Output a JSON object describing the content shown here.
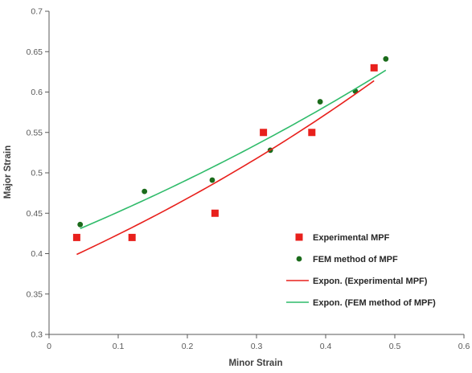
{
  "chart_data": {
    "type": "scatter",
    "title": "",
    "xlabel": "Minor Strain",
    "ylabel": "Major Strain",
    "xlim": [
      0,
      0.6
    ],
    "ylim": [
      0.3,
      0.7
    ],
    "x_ticks": [
      "0",
      "0.1",
      "0.2",
      "0.3",
      "0.4",
      "0.5",
      "0.6"
    ],
    "y_ticks": [
      "0.3",
      "0.35",
      "0.4",
      "0.45",
      "0.5",
      "0.55",
      "0.6",
      "0.65",
      "0.7"
    ],
    "grid": false,
    "legend_position": "bottom-right",
    "series": [
      {
        "name": "Experimental MPF",
        "kind": "scatter",
        "marker": "square",
        "color": "#e8201c",
        "points": [
          [
            0.04,
            0.42
          ],
          [
            0.12,
            0.42
          ],
          [
            0.24,
            0.45
          ],
          [
            0.31,
            0.55
          ],
          [
            0.38,
            0.55
          ],
          [
            0.47,
            0.63
          ]
        ]
      },
      {
        "name": "FEM method of MPF",
        "kind": "scatter",
        "marker": "circle",
        "color": "#1b6b1b",
        "points": [
          [
            0.045,
            0.436
          ],
          [
            0.138,
            0.477
          ],
          [
            0.236,
            0.491
          ],
          [
            0.32,
            0.528
          ],
          [
            0.392,
            0.588
          ],
          [
            0.443,
            0.601
          ],
          [
            0.487,
            0.641
          ]
        ]
      },
      {
        "name": "Expon. (Experimental MPF)",
        "kind": "trendline",
        "color": "#e8201c",
        "points": [
          [
            0.04,
            0.399
          ],
          [
            0.1,
            0.424
          ],
          [
            0.2,
            0.468
          ],
          [
            0.3,
            0.518
          ],
          [
            0.4,
            0.572
          ],
          [
            0.47,
            0.614
          ]
        ]
      },
      {
        "name": "Expon. (FEM method of MPF)",
        "kind": "trendline",
        "color": "#2fbb6a",
        "points": [
          [
            0.045,
            0.431
          ],
          [
            0.1,
            0.452
          ],
          [
            0.2,
            0.492
          ],
          [
            0.3,
            0.536
          ],
          [
            0.4,
            0.584
          ],
          [
            0.487,
            0.627
          ]
        ]
      }
    ]
  }
}
